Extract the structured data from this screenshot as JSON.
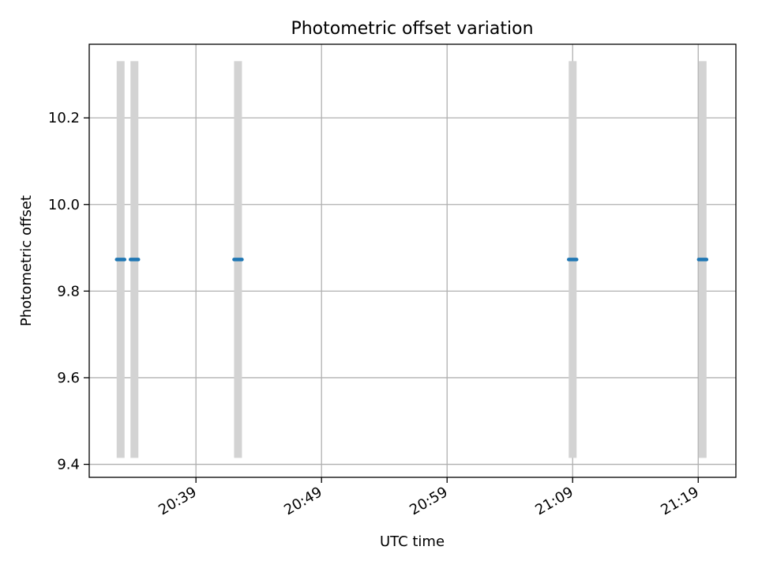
{
  "chart_data": {
    "type": "scatter",
    "title": "Photometric offset variation",
    "xlabel": "UTC time",
    "ylabel": "Photometric offset",
    "x_ticks": [
      "20:39",
      "20:49",
      "20:59",
      "21:09",
      "21:19"
    ],
    "x_tick_minutes": [
      39,
      49,
      59,
      69,
      79
    ],
    "y_ticks": [
      "9.4",
      "9.6",
      "9.8",
      "10.0",
      "10.2"
    ],
    "y_tick_values": [
      9.4,
      9.6,
      9.8,
      10.0,
      10.2
    ],
    "xlim_minutes": [
      30.5,
      82.0
    ],
    "ylim": [
      9.37,
      10.37
    ],
    "grid": true,
    "colors": {
      "points": "#1f77b4",
      "error_bars": "#d3d3d3",
      "grid": "#b0b0b0",
      "axes": "#000000"
    },
    "series": [
      {
        "x": [
          "20:33:00",
          "20:34:05",
          "20:42:20",
          "21:09:00",
          "21:19:20"
        ],
        "x_minutes": [
          33.0,
          34.1,
          42.35,
          69.0,
          79.35
        ],
        "y": [
          9.873,
          9.873,
          9.873,
          9.873,
          9.873
        ],
        "y_err": [
          0.458,
          0.458,
          0.458,
          0.458,
          0.458
        ]
      }
    ]
  }
}
